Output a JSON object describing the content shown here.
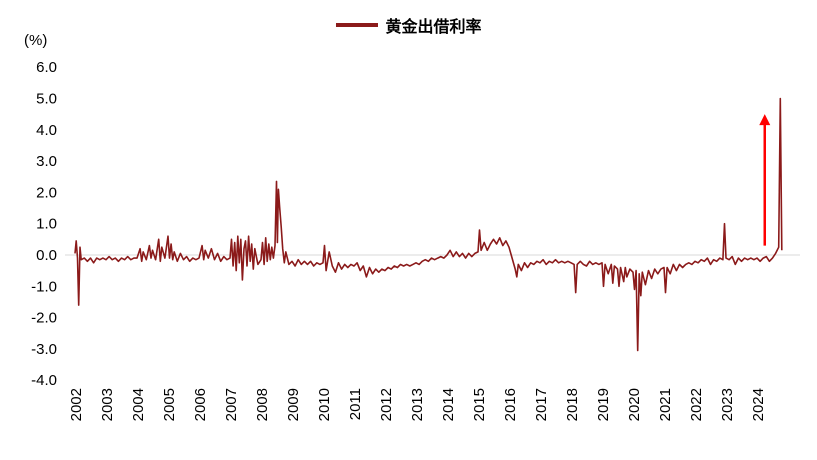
{
  "legend": {
    "label": "黄金出借利率",
    "color": "#8B1A1A"
  },
  "y_axis_unit": "(%)",
  "chart_data": {
    "type": "line",
    "title": "",
    "xlabel": "",
    "ylabel": "(%)",
    "legend_position": "top-center",
    "grid": false,
    "xlim": [
      2002,
      2025.2
    ],
    "ylim": [
      -4.0,
      6.0
    ],
    "x_ticks": [
      2002,
      2003,
      2004,
      2005,
      2006,
      2007,
      2008,
      2009,
      2010,
      2011,
      2012,
      2013,
      2014,
      2015,
      2016,
      2017,
      2018,
      2019,
      2020,
      2021,
      2022,
      2023,
      2024
    ],
    "y_ticks": [
      6.0,
      5.0,
      4.0,
      3.0,
      2.0,
      1.0,
      0.0,
      -1.0,
      -2.0,
      -3.0,
      -4.0
    ],
    "annotation": {
      "type": "arrow",
      "color": "#FF0000",
      "x": 2024.25,
      "y_from": 0.3,
      "y_to": 4.5
    },
    "series": [
      {
        "name": "黄金出借利率",
        "color": "#8B1A1A",
        "points": [
          [
            2002.0,
            0.05
          ],
          [
            2002.04,
            0.45
          ],
          [
            2002.08,
            -0.1
          ],
          [
            2002.12,
            -1.6
          ],
          [
            2002.16,
            0.25
          ],
          [
            2002.2,
            -0.15
          ],
          [
            2002.3,
            -0.1
          ],
          [
            2002.4,
            -0.2
          ],
          [
            2002.5,
            -0.1
          ],
          [
            2002.6,
            -0.25
          ],
          [
            2002.7,
            -0.1
          ],
          [
            2002.8,
            -0.15
          ],
          [
            2002.9,
            -0.1
          ],
          [
            2003.0,
            -0.15
          ],
          [
            2003.1,
            -0.05
          ],
          [
            2003.2,
            -0.15
          ],
          [
            2003.3,
            -0.1
          ],
          [
            2003.4,
            -0.2
          ],
          [
            2003.5,
            -0.1
          ],
          [
            2003.6,
            -0.15
          ],
          [
            2003.7,
            -0.05
          ],
          [
            2003.8,
            -0.15
          ],
          [
            2003.9,
            -0.1
          ],
          [
            2004.0,
            -0.1
          ],
          [
            2004.1,
            0.2
          ],
          [
            2004.15,
            -0.2
          ],
          [
            2004.2,
            0.1
          ],
          [
            2004.3,
            -0.15
          ],
          [
            2004.4,
            0.3
          ],
          [
            2004.45,
            -0.1
          ],
          [
            2004.5,
            0.15
          ],
          [
            2004.6,
            -0.15
          ],
          [
            2004.7,
            0.5
          ],
          [
            2004.75,
            -0.2
          ],
          [
            2004.8,
            0.25
          ],
          [
            2004.9,
            -0.1
          ],
          [
            2005.0,
            0.6
          ],
          [
            2005.05,
            -0.1
          ],
          [
            2005.1,
            0.35
          ],
          [
            2005.15,
            -0.15
          ],
          [
            2005.2,
            0.1
          ],
          [
            2005.3,
            -0.2
          ],
          [
            2005.4,
            0.05
          ],
          [
            2005.5,
            -0.15
          ],
          [
            2005.6,
            -0.05
          ],
          [
            2005.7,
            -0.2
          ],
          [
            2005.8,
            -0.1
          ],
          [
            2005.9,
            -0.15
          ],
          [
            2006.0,
            -0.1
          ],
          [
            2006.1,
            0.3
          ],
          [
            2006.15,
            -0.15
          ],
          [
            2006.2,
            0.15
          ],
          [
            2006.3,
            -0.1
          ],
          [
            2006.4,
            0.2
          ],
          [
            2006.5,
            -0.15
          ],
          [
            2006.6,
            0.05
          ],
          [
            2006.7,
            -0.2
          ],
          [
            2006.8,
            -0.05
          ],
          [
            2006.9,
            -0.15
          ],
          [
            2007.0,
            -0.1
          ],
          [
            2007.05,
            0.5
          ],
          [
            2007.1,
            -0.35
          ],
          [
            2007.15,
            0.4
          ],
          [
            2007.2,
            -0.5
          ],
          [
            2007.25,
            0.6
          ],
          [
            2007.3,
            -0.25
          ],
          [
            2007.35,
            0.5
          ],
          [
            2007.4,
            -0.8
          ],
          [
            2007.45,
            0.2
          ],
          [
            2007.5,
            0.45
          ],
          [
            2007.55,
            -0.35
          ],
          [
            2007.6,
            0.6
          ],
          [
            2007.65,
            -0.2
          ],
          [
            2007.7,
            0.35
          ],
          [
            2007.75,
            -0.45
          ],
          [
            2007.8,
            0.2
          ],
          [
            2007.9,
            -0.3
          ],
          [
            2008.0,
            -0.15
          ],
          [
            2008.05,
            0.4
          ],
          [
            2008.1,
            -0.3
          ],
          [
            2008.15,
            0.55
          ],
          [
            2008.2,
            -0.2
          ],
          [
            2008.25,
            0.35
          ],
          [
            2008.3,
            -0.15
          ],
          [
            2008.35,
            0.25
          ],
          [
            2008.4,
            -0.1
          ],
          [
            2008.45,
            0.3
          ],
          [
            2008.5,
            2.35
          ],
          [
            2008.53,
            0.4
          ],
          [
            2008.56,
            2.1
          ],
          [
            2008.6,
            1.55
          ],
          [
            2008.65,
            0.9
          ],
          [
            2008.7,
            0.2
          ],
          [
            2008.75,
            -0.25
          ],
          [
            2008.8,
            0.1
          ],
          [
            2008.9,
            -0.3
          ],
          [
            2009.0,
            -0.2
          ],
          [
            2009.1,
            -0.35
          ],
          [
            2009.2,
            -0.15
          ],
          [
            2009.3,
            -0.3
          ],
          [
            2009.4,
            -0.2
          ],
          [
            2009.5,
            -0.3
          ],
          [
            2009.6,
            -0.2
          ],
          [
            2009.7,
            -0.35
          ],
          [
            2009.8,
            -0.25
          ],
          [
            2009.9,
            -0.3
          ],
          [
            2010.0,
            -0.25
          ],
          [
            2010.05,
            0.3
          ],
          [
            2010.1,
            -0.5
          ],
          [
            2010.2,
            0.1
          ],
          [
            2010.3,
            -0.35
          ],
          [
            2010.4,
            -0.55
          ],
          [
            2010.5,
            -0.25
          ],
          [
            2010.6,
            -0.45
          ],
          [
            2010.7,
            -0.3
          ],
          [
            2010.8,
            -0.4
          ],
          [
            2010.9,
            -0.3
          ],
          [
            2011.0,
            -0.35
          ],
          [
            2011.1,
            -0.25
          ],
          [
            2011.2,
            -0.5
          ],
          [
            2011.3,
            -0.35
          ],
          [
            2011.4,
            -0.7
          ],
          [
            2011.5,
            -0.4
          ],
          [
            2011.6,
            -0.6
          ],
          [
            2011.7,
            -0.45
          ],
          [
            2011.8,
            -0.55
          ],
          [
            2011.9,
            -0.45
          ],
          [
            2012.0,
            -0.5
          ],
          [
            2012.1,
            -0.4
          ],
          [
            2012.2,
            -0.45
          ],
          [
            2012.3,
            -0.35
          ],
          [
            2012.4,
            -0.4
          ],
          [
            2012.5,
            -0.3
          ],
          [
            2012.6,
            -0.35
          ],
          [
            2012.7,
            -0.3
          ],
          [
            2012.8,
            -0.35
          ],
          [
            2012.9,
            -0.3
          ],
          [
            2013.0,
            -0.25
          ],
          [
            2013.1,
            -0.3
          ],
          [
            2013.2,
            -0.2
          ],
          [
            2013.3,
            -0.15
          ],
          [
            2013.4,
            -0.2
          ],
          [
            2013.5,
            -0.1
          ],
          [
            2013.6,
            -0.15
          ],
          [
            2013.7,
            -0.1
          ],
          [
            2013.8,
            -0.05
          ],
          [
            2013.9,
            -0.1
          ],
          [
            2014.0,
            0.0
          ],
          [
            2014.1,
            0.15
          ],
          [
            2014.2,
            -0.05
          ],
          [
            2014.3,
            0.1
          ],
          [
            2014.4,
            -0.05
          ],
          [
            2014.5,
            0.05
          ],
          [
            2014.6,
            -0.1
          ],
          [
            2014.7,
            0.05
          ],
          [
            2014.8,
            -0.05
          ],
          [
            2014.9,
            0.05
          ],
          [
            2015.0,
            0.1
          ],
          [
            2015.05,
            0.8
          ],
          [
            2015.1,
            0.15
          ],
          [
            2015.2,
            0.4
          ],
          [
            2015.3,
            0.15
          ],
          [
            2015.4,
            0.35
          ],
          [
            2015.5,
            0.5
          ],
          [
            2015.6,
            0.35
          ],
          [
            2015.7,
            0.55
          ],
          [
            2015.8,
            0.3
          ],
          [
            2015.9,
            0.45
          ],
          [
            2016.0,
            0.25
          ],
          [
            2016.1,
            -0.1
          ],
          [
            2016.2,
            -0.45
          ],
          [
            2016.25,
            -0.7
          ],
          [
            2016.3,
            -0.3
          ],
          [
            2016.4,
            -0.5
          ],
          [
            2016.5,
            -0.25
          ],
          [
            2016.6,
            -0.4
          ],
          [
            2016.7,
            -0.25
          ],
          [
            2016.8,
            -0.3
          ],
          [
            2016.9,
            -0.2
          ],
          [
            2017.0,
            -0.25
          ],
          [
            2017.1,
            -0.15
          ],
          [
            2017.2,
            -0.3
          ],
          [
            2017.3,
            -0.2
          ],
          [
            2017.4,
            -0.25
          ],
          [
            2017.5,
            -0.15
          ],
          [
            2017.6,
            -0.25
          ],
          [
            2017.7,
            -0.2
          ],
          [
            2017.8,
            -0.25
          ],
          [
            2017.9,
            -0.2
          ],
          [
            2018.0,
            -0.25
          ],
          [
            2018.1,
            -0.3
          ],
          [
            2018.15,
            -1.2
          ],
          [
            2018.2,
            -0.3
          ],
          [
            2018.3,
            -0.2
          ],
          [
            2018.4,
            -0.3
          ],
          [
            2018.5,
            -0.35
          ],
          [
            2018.6,
            -0.2
          ],
          [
            2018.7,
            -0.3
          ],
          [
            2018.8,
            -0.25
          ],
          [
            2018.9,
            -0.3
          ],
          [
            2019.0,
            -0.25
          ],
          [
            2019.05,
            -1.0
          ],
          [
            2019.1,
            -0.3
          ],
          [
            2019.2,
            -0.6
          ],
          [
            2019.3,
            -0.3
          ],
          [
            2019.35,
            -0.9
          ],
          [
            2019.4,
            -0.35
          ],
          [
            2019.5,
            -0.45
          ],
          [
            2019.55,
            -1.0
          ],
          [
            2019.6,
            -0.4
          ],
          [
            2019.7,
            -0.85
          ],
          [
            2019.75,
            -0.4
          ],
          [
            2019.8,
            -0.7
          ],
          [
            2019.9,
            -0.45
          ],
          [
            2020.0,
            -0.55
          ],
          [
            2020.05,
            -1.1
          ],
          [
            2020.1,
            -0.5
          ],
          [
            2020.15,
            -3.05
          ],
          [
            2020.2,
            -0.6
          ],
          [
            2020.25,
            -1.3
          ],
          [
            2020.3,
            -0.55
          ],
          [
            2020.4,
            -0.95
          ],
          [
            2020.5,
            -0.5
          ],
          [
            2020.6,
            -0.75
          ],
          [
            2020.7,
            -0.45
          ],
          [
            2020.8,
            -0.6
          ],
          [
            2020.9,
            -0.45
          ],
          [
            2021.0,
            -0.4
          ],
          [
            2021.05,
            -1.2
          ],
          [
            2021.1,
            -0.4
          ],
          [
            2021.2,
            -0.6
          ],
          [
            2021.3,
            -0.3
          ],
          [
            2021.4,
            -0.5
          ],
          [
            2021.5,
            -0.3
          ],
          [
            2021.6,
            -0.4
          ],
          [
            2021.7,
            -0.3
          ],
          [
            2021.8,
            -0.25
          ],
          [
            2021.9,
            -0.3
          ],
          [
            2022.0,
            -0.2
          ],
          [
            2022.1,
            -0.25
          ],
          [
            2022.2,
            -0.15
          ],
          [
            2022.3,
            -0.2
          ],
          [
            2022.4,
            -0.1
          ],
          [
            2022.5,
            -0.3
          ],
          [
            2022.6,
            -0.15
          ],
          [
            2022.7,
            -0.2
          ],
          [
            2022.8,
            -0.1
          ],
          [
            2022.9,
            -0.15
          ],
          [
            2022.95,
            1.0
          ],
          [
            2023.0,
            -0.1
          ],
          [
            2023.1,
            -0.15
          ],
          [
            2023.2,
            -0.05
          ],
          [
            2023.3,
            -0.3
          ],
          [
            2023.4,
            -0.1
          ],
          [
            2023.5,
            -0.2
          ],
          [
            2023.6,
            -0.1
          ],
          [
            2023.7,
            -0.15
          ],
          [
            2023.8,
            -0.1
          ],
          [
            2023.9,
            -0.15
          ],
          [
            2024.0,
            -0.1
          ],
          [
            2024.1,
            -0.2
          ],
          [
            2024.2,
            -0.1
          ],
          [
            2024.3,
            -0.05
          ],
          [
            2024.4,
            -0.2
          ],
          [
            2024.5,
            -0.1
          ],
          [
            2024.6,
            0.05
          ],
          [
            2024.7,
            0.25
          ],
          [
            2024.75,
            5.0
          ],
          [
            2024.8,
            0.15
          ]
        ]
      }
    ]
  }
}
